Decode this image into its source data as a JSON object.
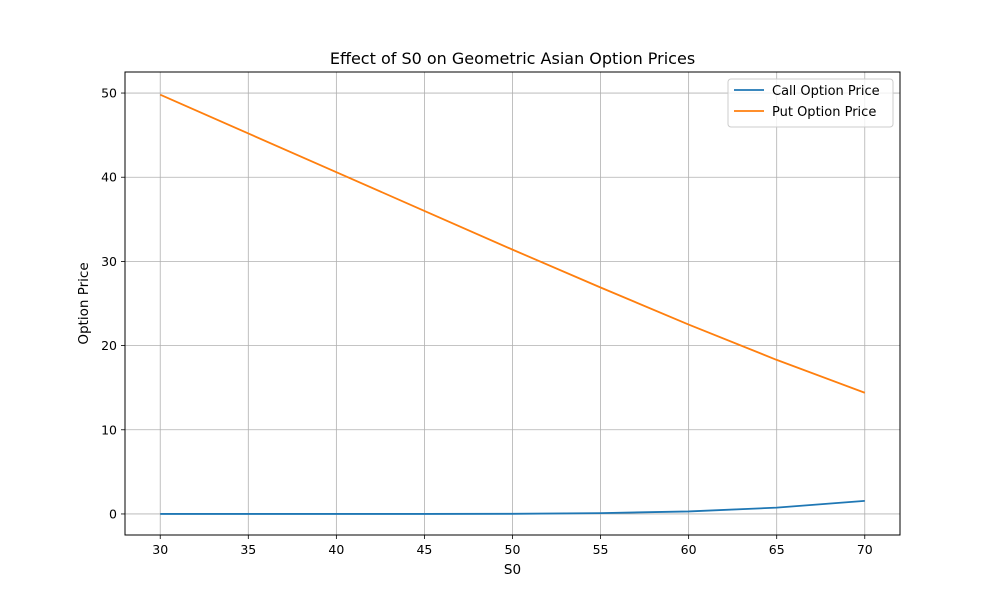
{
  "chart_data": {
    "type": "line",
    "title": "Effect of S0 on Geometric Asian Option Prices",
    "xlabel": "S0",
    "ylabel": "Option Price",
    "xlim": [
      28,
      72
    ],
    "ylim": [
      -2.5,
      52.5
    ],
    "xticks": [
      30,
      35,
      40,
      45,
      50,
      55,
      60,
      65,
      70
    ],
    "yticks": [
      0,
      10,
      20,
      30,
      40,
      50
    ],
    "grid": true,
    "legend_position": "upper-right",
    "x": [
      30,
      35,
      40,
      45,
      50,
      55,
      60,
      65,
      70
    ],
    "series": [
      {
        "name": "Call Option Price",
        "color": "#1f77b4",
        "values": [
          0.0,
          0.0,
          0.0,
          0.0,
          0.02,
          0.1,
          0.3,
          0.75,
          1.55
        ]
      },
      {
        "name": "Put Option Price",
        "color": "#ff7f0e",
        "values": [
          49.8,
          45.2,
          40.6,
          36.0,
          31.4,
          26.9,
          22.5,
          18.3,
          14.4
        ]
      }
    ]
  }
}
